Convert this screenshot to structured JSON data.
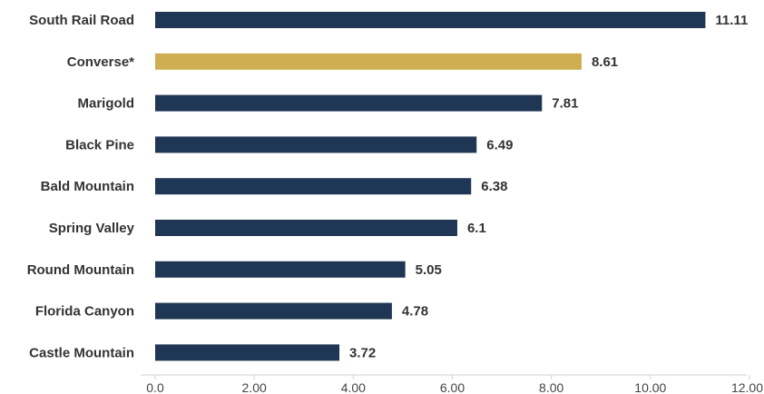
{
  "chart_data": {
    "type": "bar",
    "orientation": "horizontal",
    "categories": [
      "South Rail Road",
      "Converse*",
      "Marigold",
      "Black Pine",
      "Bald Mountain",
      "Spring Valley",
      "Round Mountain",
      "Florida Canyon",
      "Castle Mountain"
    ],
    "values": [
      11.11,
      8.61,
      7.81,
      6.49,
      6.38,
      6.1,
      5.05,
      4.78,
      3.72
    ],
    "value_labels": [
      "11.11",
      "8.61",
      "7.81",
      "6.49",
      "6.38",
      "6.1",
      "5.05",
      "4.78",
      "3.72"
    ],
    "bar_colors": [
      "#1f3654",
      "#cfae52",
      "#1f3654",
      "#1f3654",
      "#1f3654",
      "#1f3654",
      "#1f3654",
      "#1f3654",
      "#1f3654"
    ],
    "x_ticks": [
      "0.0",
      "2.00",
      "4.00",
      "6.00",
      "8.00",
      "10.00",
      "12.00"
    ],
    "xlim": [
      0,
      12
    ],
    "title": "",
    "xlabel": "",
    "ylabel": "",
    "grid": false,
    "legend": "none"
  }
}
